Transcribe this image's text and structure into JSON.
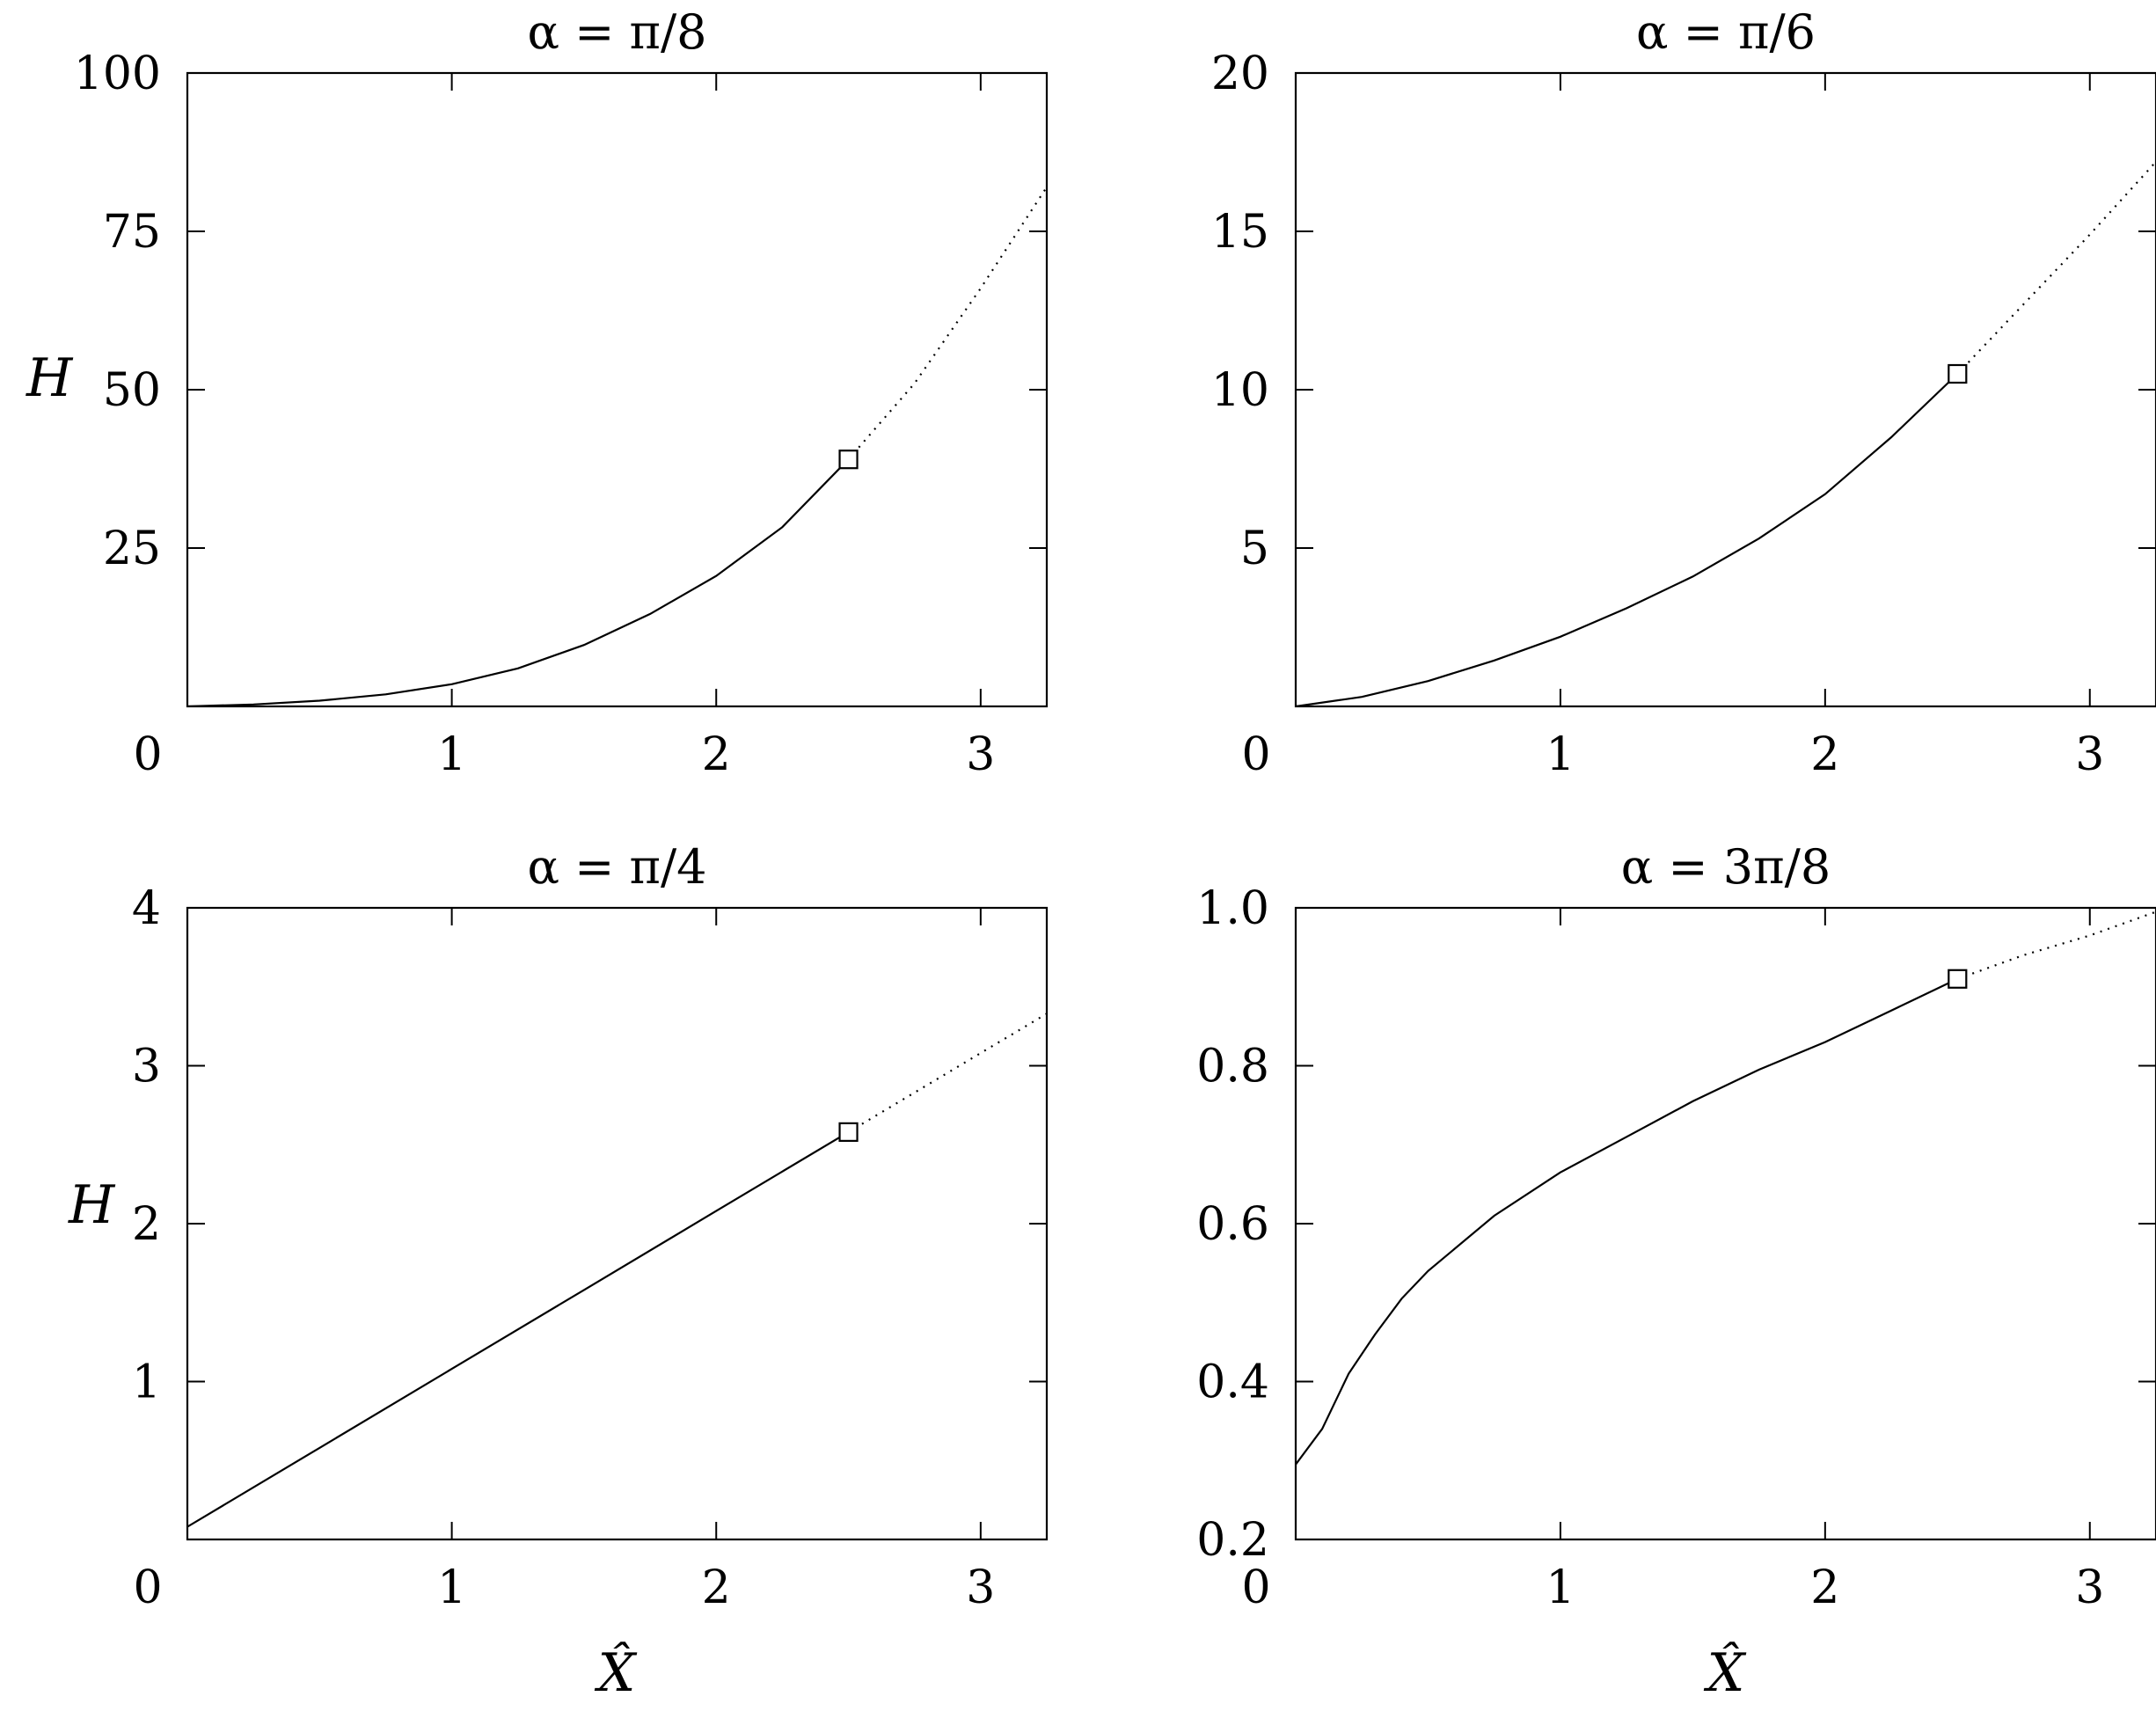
{
  "chart_data": [
    {
      "type": "line",
      "title": "α = π/8",
      "xlabel": "",
      "ylabel": "H",
      "xlim": [
        0,
        3.25
      ],
      "ylim": [
        0,
        100
      ],
      "xticks": [
        0,
        1,
        2,
        3
      ],
      "xtick_labels": [
        "0",
        "1",
        "2",
        "3"
      ],
      "yticks": [
        25,
        50,
        75,
        100
      ],
      "ytick_labels": [
        "25",
        "50",
        "75",
        "100"
      ],
      "series": [
        {
          "style": "solid",
          "x": [
            0,
            0.25,
            0.5,
            0.75,
            1.0,
            1.25,
            1.5,
            1.75,
            2.0,
            2.25,
            2.5
          ],
          "y": [
            0,
            0.3,
            0.9,
            1.9,
            3.5,
            6.0,
            9.7,
            14.6,
            20.6,
            28.3,
            39.0
          ]
        },
        {
          "style": "dotted",
          "x": [
            2.5,
            2.75,
            3.0,
            3.25
          ],
          "y": [
            39.0,
            51.0,
            66.0,
            82.0
          ]
        }
      ],
      "marker": {
        "x": 2.5,
        "y": 39.0
      }
    },
    {
      "type": "line",
      "title": "α = π/6",
      "xlabel": "",
      "ylabel": "",
      "xlim": [
        0,
        3.25
      ],
      "ylim": [
        0,
        20
      ],
      "xticks": [
        0,
        1,
        2,
        3
      ],
      "xtick_labels": [
        "0",
        "1",
        "2",
        "3"
      ],
      "yticks": [
        5,
        10,
        15,
        20
      ],
      "ytick_labels": [
        "5",
        "10",
        "15",
        "20"
      ],
      "series": [
        {
          "style": "solid",
          "x": [
            0,
            0.25,
            0.5,
            0.75,
            1.0,
            1.25,
            1.5,
            1.75,
            2.0,
            2.25,
            2.5
          ],
          "y": [
            0,
            0.3,
            0.8,
            1.45,
            2.2,
            3.1,
            4.1,
            5.3,
            6.7,
            8.5,
            10.5
          ]
        },
        {
          "style": "dotted",
          "x": [
            2.5,
            2.75,
            3.0,
            3.25
          ],
          "y": [
            10.5,
            12.7,
            14.9,
            17.2
          ]
        }
      ],
      "marker": {
        "x": 2.5,
        "y": 10.5
      }
    },
    {
      "type": "line",
      "title": "α = π/4",
      "xlabel": "X̂",
      "ylabel": "H",
      "xlim": [
        0,
        3.25
      ],
      "ylim": [
        0,
        4
      ],
      "xticks": [
        0,
        1,
        2,
        3
      ],
      "xtick_labels": [
        "0",
        "1",
        "2",
        "3"
      ],
      "yticks": [
        1,
        2,
        3,
        4
      ],
      "ytick_labels": [
        "1",
        "2",
        "3",
        "4"
      ],
      "series": [
        {
          "style": "solid",
          "x": [
            0,
            0.5,
            1.0,
            1.5,
            2.0,
            2.5
          ],
          "y": [
            0.08,
            0.58,
            1.08,
            1.58,
            2.08,
            2.58
          ]
        },
        {
          "style": "dotted",
          "x": [
            2.5,
            2.75,
            3.0,
            3.25
          ],
          "y": [
            2.58,
            2.83,
            3.08,
            3.33
          ]
        }
      ],
      "marker": {
        "x": 2.5,
        "y": 2.58
      }
    },
    {
      "type": "line",
      "title": "α = 3π/8",
      "xlabel": "X̂",
      "ylabel": "",
      "xlim": [
        0,
        3.25
      ],
      "ylim": [
        0.2,
        1.0
      ],
      "xticks": [
        0,
        1,
        2,
        3
      ],
      "xtick_labels": [
        "0",
        "1",
        "2",
        "3"
      ],
      "yticks": [
        0.2,
        0.4,
        0.6,
        0.8,
        1.0
      ],
      "ytick_labels": [
        "0.2",
        "0.4",
        "0.6",
        "0.8",
        "1.0"
      ],
      "series": [
        {
          "style": "solid",
          "x": [
            0,
            0.1,
            0.2,
            0.3,
            0.4,
            0.5,
            0.75,
            1.0,
            1.25,
            1.5,
            1.75,
            2.0,
            2.25,
            2.5
          ],
          "y": [
            0.295,
            0.34,
            0.41,
            0.46,
            0.505,
            0.54,
            0.61,
            0.665,
            0.71,
            0.755,
            0.795,
            0.83,
            0.87,
            0.91
          ]
        },
        {
          "style": "dotted",
          "x": [
            2.5,
            2.75,
            3.0,
            3.25
          ],
          "y": [
            0.91,
            0.94,
            0.965,
            0.995
          ]
        }
      ],
      "marker": {
        "x": 2.5,
        "y": 0.91
      }
    }
  ]
}
